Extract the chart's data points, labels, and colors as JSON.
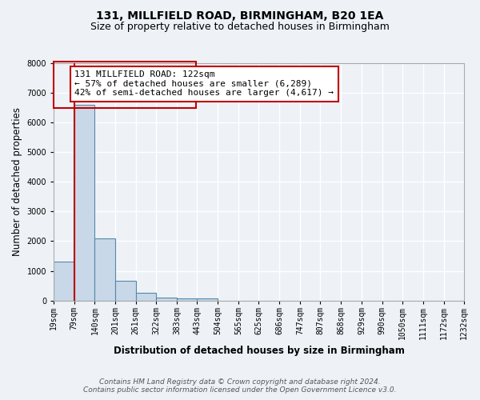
{
  "title1": "131, MILLFIELD ROAD, BIRMINGHAM, B20 1EA",
  "title2": "Size of property relative to detached houses in Birmingham",
  "xlabel": "Distribution of detached houses by size in Birmingham",
  "ylabel": "Number of detached properties",
  "bar_values": [
    1300,
    6600,
    2100,
    650,
    250,
    100,
    75,
    75,
    0,
    0,
    0,
    0,
    0,
    0,
    0,
    0,
    0,
    0,
    0,
    0
  ],
  "bin_edges": [
    19,
    79,
    140,
    201,
    261,
    322,
    383,
    443,
    504,
    565,
    625,
    686,
    747,
    807,
    868,
    929,
    990,
    1050,
    1111,
    1172,
    1232
  ],
  "x_labels": [
    "19sqm",
    "79sqm",
    "140sqm",
    "201sqm",
    "261sqm",
    "322sqm",
    "383sqm",
    "443sqm",
    "504sqm",
    "565sqm",
    "625sqm",
    "686sqm",
    "747sqm",
    "807sqm",
    "868sqm",
    "929sqm",
    "990sqm",
    "1050sqm",
    "1111sqm",
    "1172sqm",
    "1232sqm"
  ],
  "bar_color": "#c8d8e8",
  "bar_edge_color": "#5588aa",
  "highlight_bar_index": 1,
  "annotation_text": "131 MILLFIELD ROAD: 122sqm\n← 57% of detached houses are smaller (6,289)\n42% of semi-detached houses are larger (4,617) →",
  "annotation_box_color": "#ffffff",
  "annotation_box_edge_color": "#c00000",
  "ylim": [
    0,
    8000
  ],
  "yticks": [
    0,
    1000,
    2000,
    3000,
    4000,
    5000,
    6000,
    7000,
    8000
  ],
  "footer1": "Contains HM Land Registry data © Crown copyright and database right 2024.",
  "footer2": "Contains public sector information licensed under the Open Government Licence v3.0.",
  "bg_color": "#eef2f7",
  "grid_color": "#ffffff",
  "title1_fontsize": 10,
  "title2_fontsize": 9,
  "axis_label_fontsize": 8.5,
  "tick_fontsize": 7,
  "annotation_fontsize": 8,
  "footer_fontsize": 6.5
}
